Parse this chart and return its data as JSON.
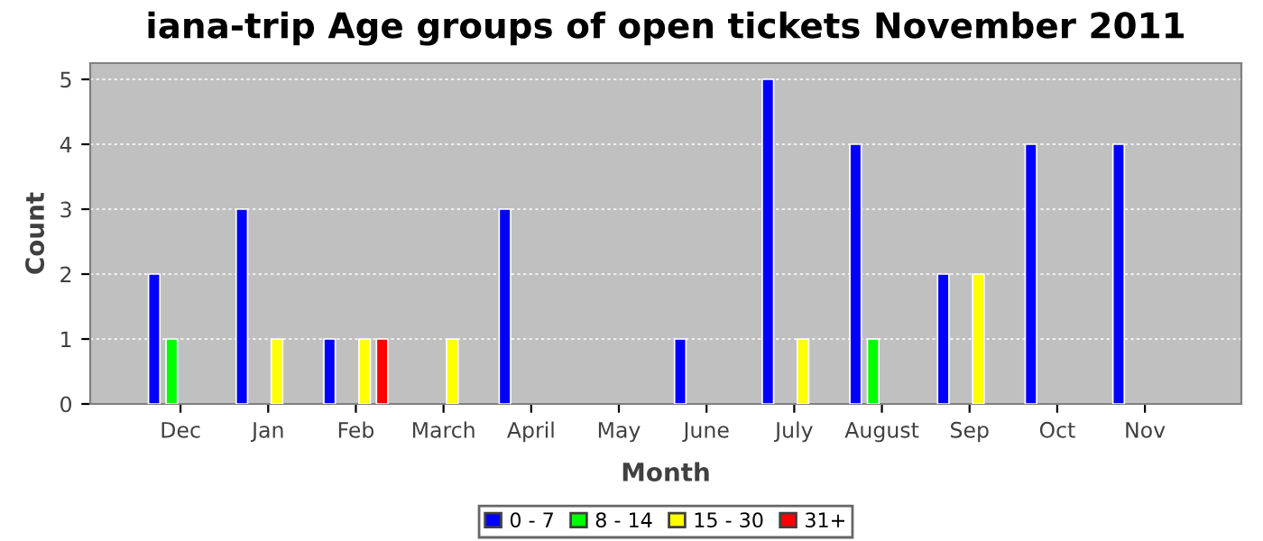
{
  "chart_data": {
    "type": "bar",
    "title": "iana-trip Age groups of open tickets November 2011",
    "xlabel": "Month",
    "ylabel": "Count",
    "categories": [
      "Dec",
      "Jan",
      "Feb",
      "March",
      "April",
      "May",
      "June",
      "July",
      "August",
      "Sep",
      "Oct",
      "Nov"
    ],
    "series": [
      {
        "name": "0 - 7",
        "color": "#0000ff",
        "values": [
          2,
          3,
          1,
          0,
          3,
          0,
          1,
          5,
          4,
          2,
          4,
          4
        ]
      },
      {
        "name": "8 - 14",
        "color": "#00ff00",
        "values": [
          1,
          0,
          0,
          0,
          0,
          0,
          0,
          0,
          1,
          0,
          0,
          0
        ]
      },
      {
        "name": "15 - 30",
        "color": "#ffff00",
        "values": [
          0,
          1,
          1,
          1,
          0,
          0,
          0,
          1,
          0,
          2,
          0,
          0
        ]
      },
      {
        "name": "31+",
        "color": "#ff0000",
        "values": [
          0,
          0,
          1,
          0,
          0,
          0,
          0,
          0,
          0,
          0,
          0,
          0
        ]
      }
    ],
    "ylim": [
      0,
      5.25
    ],
    "yticks": [
      0,
      1,
      2,
      3,
      4,
      5
    ],
    "grid": "y",
    "legend": "bottom"
  }
}
